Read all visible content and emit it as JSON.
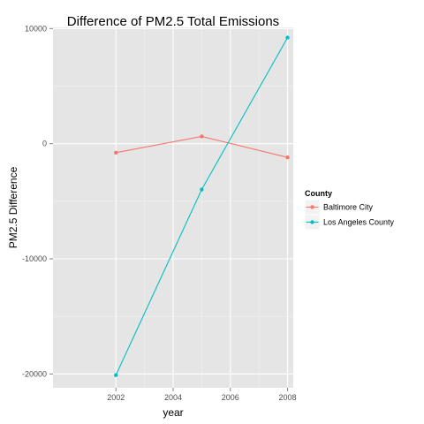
{
  "chart_data": {
    "type": "line",
    "title": "Difference of PM2.5 Total Emissions",
    "xlabel": "year",
    "ylabel": "PM2.5 Difference",
    "xlim": [
      1999.8,
      2008.2
    ],
    "ylim": [
      -21200,
      10100
    ],
    "x_ticks": [
      2002,
      2004,
      2006,
      2008
    ],
    "x_tick_labels": [
      "2002",
      "2004",
      "2006",
      "2008"
    ],
    "y_ticks": [
      -20000,
      -10000,
      0,
      10000
    ],
    "y_tick_labels": [
      "-20000",
      "-10000",
      "0",
      "10000"
    ],
    "grid": true,
    "legend": {
      "title": "County",
      "placement": "right"
    },
    "x": [
      2002,
      2005,
      2008
    ],
    "series": [
      {
        "name": "Baltimore City",
        "color": "#F8766D",
        "values": [
          -780,
          630,
          -1190
        ]
      },
      {
        "name": "Los Angeles County",
        "color": "#00BFC4",
        "values": [
          -20100,
          -3980,
          9210
        ]
      }
    ],
    "panel_background": "#E5E5E5",
    "grid_color": "#FFFFFF"
  }
}
